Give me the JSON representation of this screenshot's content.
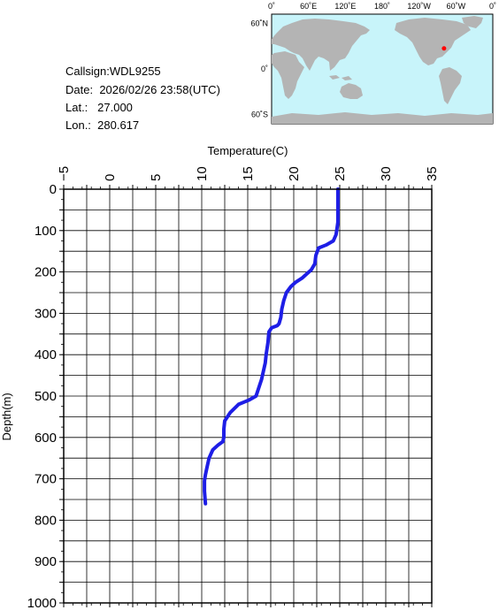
{
  "station": {
    "callsign_line": "Callsign:WDL9255",
    "date_label": "Date:",
    "date_value": "2026/02/26 23:58(UTC)",
    "lat_label": "Lat.:",
    "lat_value": "27.000",
    "lon_label": "Lon.:",
    "lon_value": "280.617"
  },
  "map": {
    "lon_labels": [
      "0˚",
      "60˚E",
      "120˚E",
      "180˚",
      "120˚W",
      "60˚W",
      "0˚"
    ],
    "lat_labels": [
      "60˚N",
      "0˚",
      "60˚S"
    ],
    "ocean_color": "#c8f4fa",
    "land_color": "#b4b4b4",
    "marker_color": "#ff0000",
    "marker_lat": 27.0,
    "marker_lon": 280.617
  },
  "chart_data": {
    "type": "line",
    "xlabel": "Temperature(C)",
    "ylabel": "Depth(m)",
    "xlim": [
      -5,
      35
    ],
    "ylim": [
      0,
      1000
    ],
    "y_inverted": true,
    "x_axis_position": "top",
    "x_ticks": [
      -5,
      0,
      5,
      10,
      15,
      20,
      25,
      30,
      35
    ],
    "y_ticks": [
      0,
      100,
      200,
      300,
      400,
      500,
      600,
      700,
      800,
      900,
      1000
    ],
    "grid": true,
    "line_color": "#1e1ee6",
    "series": [
      {
        "x": [
          24.8,
          24.8,
          24.8,
          24.7,
          24.6,
          24.3,
          23.5,
          22.7,
          22.4,
          22.3,
          21.9,
          21.4,
          20.9,
          20.2,
          19.7,
          19.2,
          18.9,
          18.7,
          18.6,
          18.4,
          18.2,
          17.6,
          17.3,
          17.2,
          17.0,
          16.9,
          16.7,
          16.5,
          16.2,
          15.9,
          15.1,
          14.0,
          13.1,
          12.5,
          12.4,
          12.4,
          12.3,
          11.8,
          11.2,
          10.8,
          10.6,
          10.4,
          10.3,
          10.3,
          10.4
        ],
        "y": [
          0,
          40,
          80,
          95,
          110,
          125,
          135,
          142,
          160,
          180,
          195,
          205,
          215,
          225,
          235,
          250,
          270,
          290,
          310,
          325,
          330,
          335,
          345,
          370,
          400,
          420,
          440,
          460,
          480,
          500,
          510,
          520,
          540,
          560,
          580,
          600,
          610,
          618,
          630,
          650,
          670,
          690,
          705,
          730,
          760
        ]
      }
    ]
  }
}
